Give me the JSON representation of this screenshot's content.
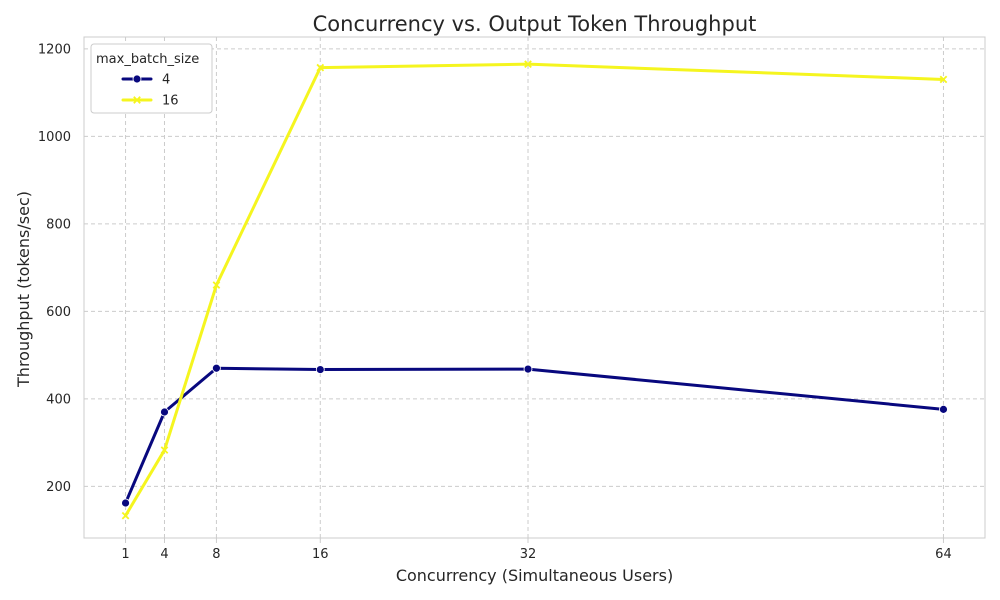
{
  "chart_data": {
    "type": "line",
    "title": "Concurrency vs. Output Token Throughput",
    "xlabel": "Concurrency (Simultaneous Users)",
    "ylabel": "Throughput (tokens/sec)",
    "x": [
      1,
      4,
      8,
      16,
      32,
      64
    ],
    "x_ticks": [
      "1",
      "4",
      "8",
      "16",
      "32",
      "64"
    ],
    "y_ticks": [
      "200",
      "400",
      "600",
      "800",
      "1000",
      "1200"
    ],
    "xlim": [
      -2.2,
      67.2
    ],
    "ylim": [
      82,
      1227
    ],
    "grid": true,
    "legend": {
      "title": "max_batch_size",
      "position": "top-left"
    },
    "series": [
      {
        "name": "4",
        "values": [
          162,
          370,
          470,
          467,
          468,
          376
        ],
        "color": "#08087e",
        "marker": "circle"
      },
      {
        "name": "16",
        "values": [
          133,
          283,
          660,
          1157,
          1165,
          1130
        ],
        "color": "#f5f51f",
        "marker": "x"
      }
    ]
  }
}
